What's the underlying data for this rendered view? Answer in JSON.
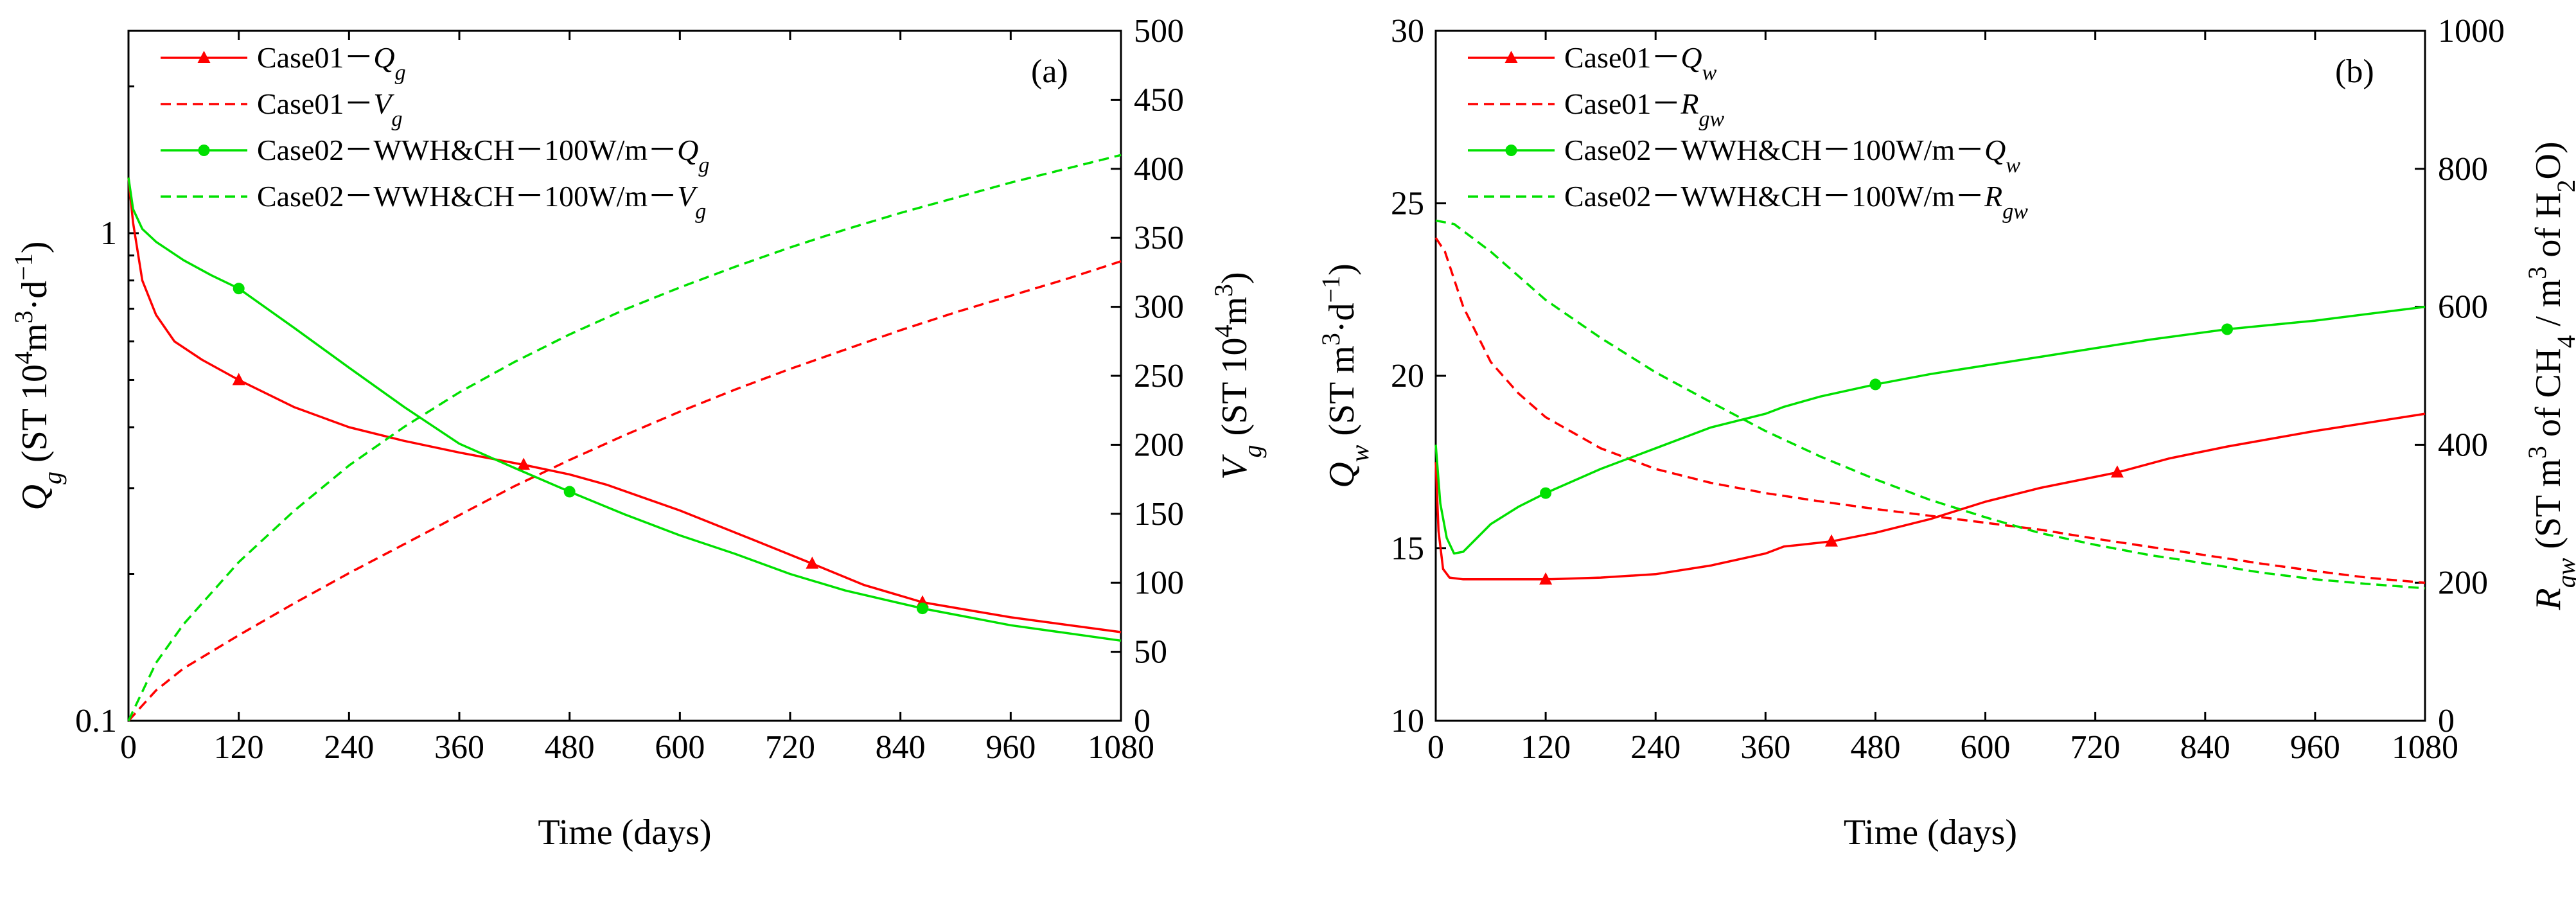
{
  "colors": {
    "red": "#ff0000",
    "green": "#00e000"
  },
  "chart_data": [
    {
      "id": "a",
      "type": "line",
      "panel_label": "(a)",
      "xlabel": "Time (days)",
      "ylabel_left": {
        "pre": "Q",
        "sub": "g",
        "unit_a": " (ST 10",
        "sup1": "4",
        "unit_b": "m",
        "sup2": "3",
        "unit_c": "·d",
        "sup3": "−1",
        "unit_d": ")"
      },
      "ylabel_right": {
        "pre": "V",
        "sub": "g",
        "unit_a": " (ST 10",
        "sup1": "4",
        "unit_b": "m",
        "sup2": "3",
        "unit_c": ")"
      },
      "xlim": [
        0,
        1080
      ],
      "xticks": [
        0,
        120,
        240,
        360,
        480,
        600,
        720,
        840,
        960,
        1080
      ],
      "xtick_labels": [
        "0",
        "120",
        "240",
        "360",
        "480",
        "600",
        "720",
        "840",
        "960",
        "1080"
      ],
      "yleft": {
        "scale": "log",
        "lim": [
          0.1,
          2.6
        ],
        "ticks": [
          0.1,
          1
        ],
        "labels": [
          "0.1",
          "1"
        ]
      },
      "yright": {
        "scale": "linear",
        "lim": [
          0,
          500
        ],
        "ticks": [
          0,
          50,
          100,
          150,
          200,
          250,
          300,
          350,
          400,
          450,
          500
        ],
        "labels": [
          "0",
          "50",
          "100",
          "150",
          "200",
          "250",
          "300",
          "350",
          "400",
          "450",
          "500"
        ]
      },
      "legend_position": "top-left",
      "series": [
        {
          "name": "Case01－Qg",
          "legend": {
            "text": "Case01－",
            "var": "Q",
            "sub": "g"
          },
          "axis": "left",
          "color": "#ff0000",
          "dash": "solid",
          "marker": "triangle",
          "x": [
            0,
            5,
            15,
            30,
            50,
            80,
            120,
            180,
            240,
            300,
            360,
            430,
            480,
            520,
            600,
            680,
            744,
            800,
            864,
            960,
            1080
          ],
          "y": [
            1.3,
            1.05,
            0.8,
            0.68,
            0.6,
            0.55,
            0.5,
            0.44,
            0.4,
            0.375,
            0.355,
            0.335,
            0.32,
            0.305,
            0.27,
            0.235,
            0.21,
            0.19,
            0.175,
            0.163,
            0.152
          ],
          "markers_x": [
            120,
            430,
            744,
            864
          ]
        },
        {
          "name": "Case01－Vg",
          "legend": {
            "text": "Case01－",
            "var": "V",
            "sub": "g"
          },
          "axis": "right",
          "color": "#ff0000",
          "dash": "dashed",
          "marker": "none",
          "x": [
            0,
            30,
            60,
            120,
            180,
            240,
            300,
            360,
            420,
            480,
            540,
            600,
            660,
            720,
            780,
            840,
            900,
            960,
            1020,
            1080
          ],
          "y": [
            0,
            22,
            38,
            62,
            85,
            107,
            128,
            149,
            170,
            189,
            207,
            224,
            240,
            255,
            269,
            283,
            296,
            308,
            320,
            333
          ]
        },
        {
          "name": "Case02－WWH&CH－100W/m－Qg",
          "legend": {
            "text": "Case02－WWH&CH－100W/m－",
            "var": "Q",
            "sub": "g"
          },
          "axis": "left",
          "color": "#00e000",
          "dash": "solid",
          "marker": "circle",
          "x": [
            0,
            5,
            15,
            30,
            60,
            90,
            120,
            180,
            240,
            300,
            360,
            420,
            480,
            540,
            600,
            660,
            720,
            780,
            864,
            960,
            1080
          ],
          "y": [
            1.3,
            1.12,
            1.02,
            0.96,
            0.88,
            0.82,
            0.77,
            0.64,
            0.53,
            0.44,
            0.37,
            0.33,
            0.295,
            0.265,
            0.24,
            0.22,
            0.2,
            0.185,
            0.17,
            0.157,
            0.146
          ],
          "markers_x": [
            120,
            480,
            864
          ]
        },
        {
          "name": "Case02－WWH&CH－100W/m－Vg",
          "legend": {
            "text": "Case02－WWH&CH－100W/m－",
            "var": "V",
            "sub": "g"
          },
          "axis": "right",
          "color": "#00e000",
          "dash": "dashed",
          "marker": "none",
          "x": [
            0,
            30,
            60,
            120,
            180,
            240,
            300,
            360,
            420,
            480,
            540,
            600,
            660,
            720,
            780,
            840,
            900,
            960,
            1020,
            1080
          ],
          "y": [
            0,
            42,
            70,
            115,
            152,
            185,
            213,
            238,
            260,
            280,
            298,
            314,
            329,
            343,
            356,
            368,
            379,
            390,
            400,
            410
          ]
        }
      ]
    },
    {
      "id": "b",
      "type": "line",
      "panel_label": "(b)",
      "xlabel": "Time (days)",
      "ylabel_left": {
        "pre": "Q",
        "sub": "w",
        "unit_a": " (ST m",
        "sup1": "3",
        "unit_b": "·d",
        "sup2": "−1",
        "unit_c": ")"
      },
      "ylabel_right": {
        "pre": "R",
        "sub": "gw",
        "unit_a": " (ST m",
        "sup1": "3",
        "unit_b": " of CH",
        "sub2": "4",
        "unit_c": " / m",
        "sup2": "3",
        "unit_d": " of H",
        "sub3": "2",
        "unit_e": "O)"
      },
      "xlim": [
        0,
        1080
      ],
      "xticks": [
        0,
        120,
        240,
        360,
        480,
        600,
        720,
        840,
        960,
        1080
      ],
      "xtick_labels": [
        "0",
        "120",
        "240",
        "360",
        "480",
        "600",
        "720",
        "840",
        "960",
        "1080"
      ],
      "yleft": {
        "scale": "linear",
        "lim": [
          10,
          30
        ],
        "ticks": [
          10,
          15,
          20,
          25,
          30
        ],
        "labels": [
          "10",
          "15",
          "20",
          "25",
          "30"
        ]
      },
      "yright": {
        "scale": "linear",
        "lim": [
          0,
          1000
        ],
        "ticks": [
          0,
          200,
          400,
          600,
          800,
          1000
        ],
        "labels": [
          "0",
          "200",
          "400",
          "600",
          "800",
          "1000"
        ]
      },
      "legend_position": "top-left",
      "series": [
        {
          "name": "Case01－Qw",
          "legend": {
            "text": "Case01－",
            "var": "Q",
            "sub": "w"
          },
          "axis": "left",
          "color": "#ff0000",
          "dash": "solid",
          "marker": "triangle",
          "x": [
            0,
            3,
            8,
            15,
            30,
            60,
            120,
            180,
            240,
            300,
            360,
            380,
            432,
            480,
            540,
            600,
            660,
            744,
            800,
            864,
            960,
            1080
          ],
          "y": [
            17.5,
            15.5,
            14.4,
            14.15,
            14.1,
            14.1,
            14.1,
            14.15,
            14.25,
            14.5,
            14.85,
            15.05,
            15.2,
            15.45,
            15.85,
            16.35,
            16.75,
            17.2,
            17.6,
            17.95,
            18.4,
            18.9
          ],
          "markers_x": [
            120,
            432,
            744
          ]
        },
        {
          "name": "Case01－Rgw",
          "legend": {
            "text": "Case01－",
            "var": "R",
            "sub": "gw"
          },
          "axis": "right",
          "color": "#ff0000",
          "dash": "dashed",
          "marker": "none",
          "x": [
            0,
            10,
            30,
            60,
            90,
            120,
            180,
            240,
            300,
            360,
            420,
            480,
            540,
            600,
            660,
            720,
            780,
            840,
            900,
            960,
            1020,
            1080
          ],
          "y": [
            700,
            680,
            600,
            520,
            475,
            440,
            395,
            365,
            345,
            330,
            318,
            307,
            297,
            287,
            277,
            264,
            252,
            240,
            228,
            217,
            207,
            200
          ]
        },
        {
          "name": "Case02－WWH&CH－100W/m－Qw",
          "legend": {
            "text": "Case02－WWH&CH－100W/m－",
            "var": "Q",
            "sub": "w"
          },
          "axis": "left",
          "color": "#00e000",
          "dash": "solid",
          "marker": "circle",
          "x": [
            0,
            5,
            12,
            20,
            30,
            45,
            60,
            90,
            120,
            180,
            240,
            300,
            360,
            380,
            420,
            480,
            540,
            600,
            660,
            720,
            780,
            864,
            960,
            1080
          ],
          "y": [
            18.0,
            16.3,
            15.3,
            14.85,
            14.9,
            15.3,
            15.7,
            16.2,
            16.6,
            17.3,
            17.9,
            18.5,
            18.9,
            19.1,
            19.4,
            19.75,
            20.05,
            20.3,
            20.55,
            20.8,
            21.05,
            21.35,
            21.6,
            22.0
          ],
          "markers_x": [
            120,
            480,
            864
          ]
        },
        {
          "name": "Case02－WWH&CH－100W/m－Rgw",
          "legend": {
            "text": "Case02－WWH&CH－100W/m－",
            "var": "R",
            "sub": "gw"
          },
          "axis": "right",
          "color": "#00e000",
          "dash": "dashed",
          "marker": "none",
          "x": [
            0,
            20,
            40,
            60,
            90,
            120,
            180,
            240,
            300,
            360,
            420,
            480,
            540,
            600,
            660,
            720,
            780,
            840,
            900,
            960,
            1020,
            1080
          ],
          "y": [
            725,
            720,
            700,
            680,
            645,
            610,
            555,
            505,
            462,
            420,
            383,
            350,
            320,
            295,
            272,
            255,
            240,
            228,
            215,
            205,
            198,
            192
          ]
        }
      ]
    }
  ]
}
